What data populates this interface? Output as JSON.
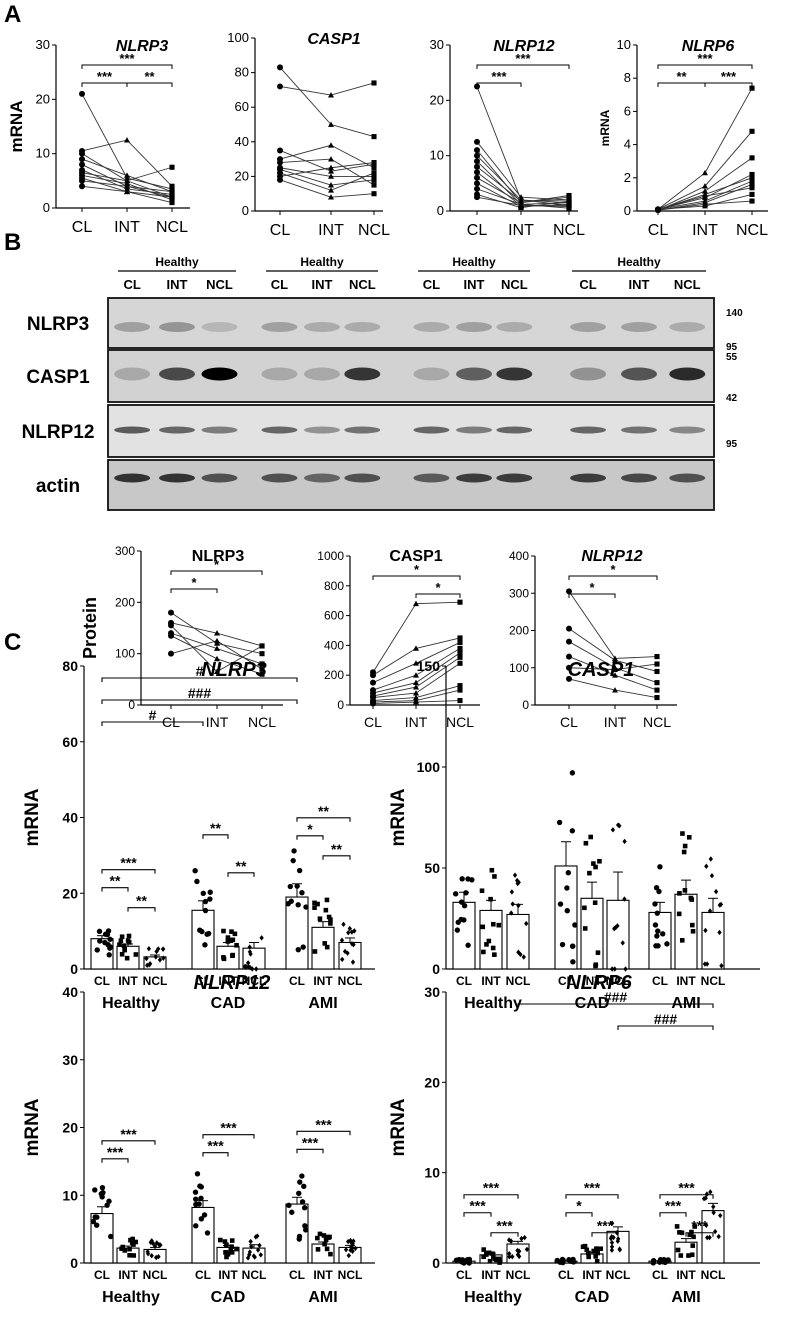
{
  "figure": {
    "panel_labels": [
      "A",
      "B",
      "C"
    ],
    "mRNA_label": "mRNA",
    "protein_label": "Protein",
    "groups": [
      "CL",
      "INT",
      "NCL"
    ],
    "cohorts": [
      "Healthy",
      "CAD",
      "AMI"
    ],
    "blot": {
      "group_header": "Healthy",
      "lanes": [
        "CL",
        "INT",
        "NCL"
      ],
      "rows": [
        "NLRP3",
        "CASP1",
        "NLRP12",
        "actin"
      ],
      "markers": [
        "140",
        "95",
        "55",
        "42",
        "95"
      ]
    }
  },
  "chart_data": [
    {
      "panel": "A",
      "type": "line",
      "title": "NLRP3",
      "italic": true,
      "ylabel": "mRNA",
      "x": [
        "CL",
        "INT",
        "NCL"
      ],
      "ylim": [
        0,
        30
      ],
      "yticks": [
        0,
        10,
        20,
        30
      ],
      "series": [
        {
          "values": [
            21,
            5.5,
            3.5
          ]
        },
        {
          "values": [
            10.5,
            12.5,
            4
          ]
        },
        {
          "values": [
            10,
            5,
            7.5
          ]
        },
        {
          "values": [
            9,
            6,
            3
          ]
        },
        {
          "values": [
            8,
            4,
            2
          ]
        },
        {
          "values": [
            7,
            3.5,
            2.5
          ]
        },
        {
          "values": [
            6.5,
            5,
            2
          ]
        },
        {
          "values": [
            6,
            4.5,
            1.5
          ]
        },
        {
          "values": [
            5.5,
            3,
            1
          ]
        },
        {
          "values": [
            5,
            4,
            3
          ]
        },
        {
          "values": [
            4,
            3,
            2
          ]
        }
      ],
      "sig": [
        {
          "from": "CL",
          "to": "NCL",
          "label": "***"
        },
        {
          "from": "CL",
          "to": "INT",
          "label": "***"
        },
        {
          "from": "INT",
          "to": "NCL",
          "label": "**"
        }
      ]
    },
    {
      "panel": "A",
      "type": "line",
      "title": "CASP1",
      "italic": true,
      "ylabel": "",
      "x": [
        "CL",
        "INT",
        "NCL"
      ],
      "ylim": [
        0,
        100
      ],
      "yticks": [
        0,
        20,
        40,
        60,
        80,
        100
      ],
      "series": [
        {
          "values": [
            83,
            50,
            43
          ]
        },
        {
          "values": [
            72,
            67,
            74
          ]
        },
        {
          "values": [
            35,
            23,
            27
          ]
        },
        {
          "values": [
            30,
            38,
            25
          ]
        },
        {
          "values": [
            28,
            30,
            15
          ]
        },
        {
          "values": [
            25,
            20,
            20
          ]
        },
        {
          "values": [
            22,
            12,
            22
          ]
        },
        {
          "values": [
            20,
            25,
            28
          ]
        },
        {
          "values": [
            18,
            8,
            10
          ]
        },
        {
          "values": [
            24,
            15,
            18
          ]
        }
      ],
      "sig": []
    },
    {
      "panel": "A",
      "type": "line",
      "title": "NLRP12",
      "italic": true,
      "ylabel": "",
      "x": [
        "CL",
        "INT",
        "NCL"
      ],
      "ylim": [
        0,
        30
      ],
      "yticks": [
        0,
        10,
        20,
        30
      ],
      "series": [
        {
          "values": [
            22.5,
            2,
            1.5
          ]
        },
        {
          "values": [
            12.5,
            2.5,
            2
          ]
        },
        {
          "values": [
            11,
            1.5,
            2.8
          ]
        },
        {
          "values": [
            10,
            2,
            1
          ]
        },
        {
          "values": [
            9,
            1.2,
            1.5
          ]
        },
        {
          "values": [
            8,
            1.8,
            2
          ]
        },
        {
          "values": [
            7,
            1,
            0.8
          ]
        },
        {
          "values": [
            6,
            1.5,
            2.5
          ]
        },
        {
          "values": [
            5,
            0.8,
            1.2
          ]
        },
        {
          "values": [
            4,
            1.2,
            0.5
          ]
        },
        {
          "values": [
            3,
            0.6,
            1.8
          ]
        },
        {
          "values": [
            2.5,
            1,
            1
          ]
        }
      ],
      "sig": [
        {
          "from": "CL",
          "to": "NCL",
          "label": "***"
        },
        {
          "from": "CL",
          "to": "INT",
          "label": "***"
        }
      ]
    },
    {
      "panel": "A",
      "type": "line",
      "title": "NLRP6",
      "italic": true,
      "ylabel": "mRNA",
      "x": [
        "CL",
        "INT",
        "NCL"
      ],
      "ylim": [
        0,
        10
      ],
      "yticks": [
        0,
        2,
        4,
        6,
        8,
        10
      ],
      "series": [
        {
          "values": [
            0.1,
            2.3,
            7.4
          ]
        },
        {
          "values": [
            0.1,
            1.5,
            4.8
          ]
        },
        {
          "values": [
            0.05,
            1.2,
            3.2
          ]
        },
        {
          "values": [
            0.1,
            0.8,
            2.2
          ]
        },
        {
          "values": [
            0.08,
            1,
            2
          ]
        },
        {
          "values": [
            0.1,
            0.6,
            1.8
          ]
        },
        {
          "values": [
            0.05,
            0.5,
            1.6
          ]
        },
        {
          "values": [
            0.1,
            0.9,
            1.4
          ]
        },
        {
          "values": [
            0.1,
            0.3,
            1
          ]
        },
        {
          "values": [
            0.05,
            0.4,
            0.6
          ]
        }
      ],
      "sig": [
        {
          "from": "CL",
          "to": "NCL",
          "label": "***"
        },
        {
          "from": "CL",
          "to": "INT",
          "label": "**"
        },
        {
          "from": "INT",
          "to": "NCL",
          "label": "***"
        }
      ]
    },
    {
      "panel": "B",
      "type": "line",
      "title": "NLRP3",
      "italic": false,
      "ylabel": "Protein",
      "x": [
        "CL",
        "INT",
        "NCL"
      ],
      "ylim": [
        0,
        300
      ],
      "yticks": [
        0,
        100,
        200,
        300
      ],
      "series": [
        {
          "values": [
            180,
            120,
            100
          ]
        },
        {
          "values": [
            160,
            140,
            115
          ]
        },
        {
          "values": [
            140,
            110,
            80
          ]
        },
        {
          "values": [
            135,
            90,
            60
          ]
        },
        {
          "values": [
            100,
            125,
            70
          ]
        },
        {
          "values": [
            155,
            65,
            115
          ]
        }
      ],
      "sig": [
        {
          "from": "CL",
          "to": "NCL",
          "label": "*"
        },
        {
          "from": "CL",
          "to": "INT",
          "label": "*"
        }
      ]
    },
    {
      "panel": "B",
      "type": "line",
      "title": "CASP1",
      "italic": false,
      "ylabel": "",
      "x": [
        "CL",
        "INT",
        "NCL"
      ],
      "ylim": [
        0,
        1000
      ],
      "yticks": [
        0,
        200,
        400,
        600,
        800,
        1000
      ],
      "series": [
        {
          "values": [
            220,
            680,
            690
          ]
        },
        {
          "values": [
            200,
            380,
            450
          ]
        },
        {
          "values": [
            150,
            280,
            420
          ]
        },
        {
          "values": [
            100,
            200,
            380
          ]
        },
        {
          "values": [
            80,
            150,
            350
          ]
        },
        {
          "values": [
            60,
            120,
            320
          ]
        },
        {
          "values": [
            50,
            80,
            280
          ]
        },
        {
          "values": [
            30,
            50,
            130
          ]
        },
        {
          "values": [
            20,
            30,
            100
          ]
        },
        {
          "values": [
            10,
            20,
            30
          ]
        }
      ],
      "sig": [
        {
          "from": "CL",
          "to": "NCL",
          "label": "*"
        },
        {
          "from": "INT",
          "to": "NCL",
          "label": "*"
        }
      ]
    },
    {
      "panel": "B",
      "type": "line",
      "title": "NLRP12",
      "italic": true,
      "ylabel": "",
      "x": [
        "CL",
        "INT",
        "NCL"
      ],
      "ylim": [
        0,
        400
      ],
      "yticks": [
        0,
        100,
        200,
        300,
        400
      ],
      "series": [
        {
          "values": [
            305,
            125,
            130
          ]
        },
        {
          "values": [
            205,
            120,
            90
          ]
        },
        {
          "values": [
            170,
            100,
            60
          ]
        },
        {
          "values": [
            130,
            80,
            40
          ]
        },
        {
          "values": [
            100,
            95,
            110
          ]
        },
        {
          "values": [
            70,
            40,
            20
          ]
        }
      ],
      "sig": [
        {
          "from": "CL",
          "to": "NCL",
          "label": "*"
        },
        {
          "from": "CL",
          "to": "INT",
          "label": "*"
        }
      ]
    },
    {
      "panel": "C",
      "type": "bar",
      "title": "NLRP3",
      "italic": true,
      "ylabel": "mRNA",
      "cohorts": [
        "Healthy",
        "CAD",
        "AMI"
      ],
      "groups": [
        "CL",
        "INT",
        "NCL"
      ],
      "ylim": [
        0,
        80
      ],
      "yticks": [
        0,
        20,
        40,
        60,
        80
      ],
      "means": [
        [
          8,
          6,
          3.2
        ],
        [
          15.5,
          6,
          5.5
        ],
        [
          19,
          11,
          7
        ]
      ],
      "sem": [
        [
          0.8,
          0.6,
          0.5
        ],
        [
          2.5,
          1,
          1.5
        ],
        [
          3.5,
          1.5,
          1.2
        ]
      ],
      "sig": [
        {
          "c1": 0,
          "g1": 0,
          "c2": 2,
          "g2": 0,
          "label": "#"
        },
        {
          "c1": 0,
          "g1": 0,
          "c2": 2,
          "g2": 0,
          "label": "###"
        },
        {
          "c1": 0,
          "g1": 0,
          "c2": 1,
          "g2": 0,
          "label": "#"
        },
        {
          "c1": 0,
          "g1": 0,
          "c2": 0,
          "g2": 2,
          "label": "***"
        },
        {
          "c1": 0,
          "g1": 0,
          "c2": 0,
          "g2": 1,
          "label": "**"
        },
        {
          "c1": 0,
          "g1": 1,
          "c2": 0,
          "g2": 2,
          "label": "**"
        },
        {
          "c1": 1,
          "g1": 0,
          "c2": 1,
          "g2": 1,
          "label": "**"
        },
        {
          "c1": 1,
          "g1": 1,
          "c2": 1,
          "g2": 2,
          "label": "**"
        },
        {
          "c1": 2,
          "g1": 0,
          "c2": 2,
          "g2": 2,
          "label": "**"
        },
        {
          "c1": 2,
          "g1": 0,
          "c2": 2,
          "g2": 1,
          "label": "*"
        },
        {
          "c1": 2,
          "g1": 1,
          "c2": 2,
          "g2": 2,
          "label": "**"
        }
      ]
    },
    {
      "panel": "C",
      "type": "bar",
      "title": "CASP1",
      "italic": true,
      "ylabel": "mRNA",
      "cohorts": [
        "Healthy",
        "CAD",
        "AMI"
      ],
      "groups": [
        "CL",
        "INT",
        "NCL"
      ],
      "ylim": [
        0,
        150
      ],
      "yticks": [
        0,
        50,
        100,
        150
      ],
      "means": [
        [
          33,
          29,
          27
        ],
        [
          51,
          35,
          34
        ],
        [
          28,
          37,
          28
        ]
      ],
      "sem": [
        [
          5,
          5,
          5
        ],
        [
          12,
          8,
          14
        ],
        [
          5,
          7,
          7
        ]
      ],
      "sig": []
    },
    {
      "panel": "C",
      "type": "bar",
      "title": "NLRP12",
      "italic": true,
      "ylabel": "mRNA",
      "cohorts": [
        "Healthy",
        "CAD",
        "AMI"
      ],
      "groups": [
        "CL",
        "INT",
        "NCL"
      ],
      "ylim": [
        0,
        40
      ],
      "yticks": [
        0,
        10,
        20,
        30,
        40
      ],
      "means": [
        [
          7.3,
          2.2,
          2
        ],
        [
          8.2,
          2.3,
          2.2
        ],
        [
          8.7,
          2.8,
          2.3
        ]
      ],
      "sem": [
        [
          1,
          0.3,
          0.3
        ],
        [
          1,
          0.3,
          0.5
        ],
        [
          1,
          0.3,
          0.3
        ]
      ],
      "sig": [
        {
          "c1": 0,
          "g1": 0,
          "c2": 0,
          "g2": 2,
          "label": "***"
        },
        {
          "c1": 0,
          "g1": 0,
          "c2": 0,
          "g2": 1,
          "label": "***"
        },
        {
          "c1": 1,
          "g1": 0,
          "c2": 1,
          "g2": 2,
          "label": "***"
        },
        {
          "c1": 1,
          "g1": 0,
          "c2": 1,
          "g2": 1,
          "label": "***"
        },
        {
          "c1": 2,
          "g1": 0,
          "c2": 2,
          "g2": 2,
          "label": "***"
        },
        {
          "c1": 2,
          "g1": 0,
          "c2": 2,
          "g2": 1,
          "label": "***"
        }
      ]
    },
    {
      "panel": "C",
      "type": "bar",
      "title": "NLRP6",
      "italic": true,
      "ylabel": "mRNA",
      "cohorts": [
        "Healthy",
        "CAD",
        "AMI"
      ],
      "groups": [
        "CL",
        "INT",
        "NCL"
      ],
      "ylim": [
        0,
        30
      ],
      "yticks": [
        0,
        10,
        20,
        30
      ],
      "means": [
        [
          0.2,
          0.9,
          2.1
        ],
        [
          0.2,
          1,
          3.5
        ],
        [
          0.2,
          2.3,
          5.8
        ]
      ],
      "sem": [
        [
          0.05,
          0.2,
          0.3
        ],
        [
          0.05,
          0.2,
          0.5
        ],
        [
          0.05,
          0.4,
          0.8
        ]
      ],
      "sig": [
        {
          "c1": 0,
          "g1": 2,
          "c2": 2,
          "g2": 2,
          "label": "###"
        },
        {
          "c1": 1,
          "g1": 2,
          "c2": 2,
          "g2": 2,
          "label": "###"
        },
        {
          "c1": 0,
          "g1": 0,
          "c2": 0,
          "g2": 2,
          "label": "***"
        },
        {
          "c1": 0,
          "g1": 0,
          "c2": 0,
          "g2": 1,
          "label": "***"
        },
        {
          "c1": 0,
          "g1": 1,
          "c2": 0,
          "g2": 2,
          "label": "***"
        },
        {
          "c1": 1,
          "g1": 0,
          "c2": 1,
          "g2": 2,
          "label": "***"
        },
        {
          "c1": 1,
          "g1": 0,
          "c2": 1,
          "g2": 1,
          "label": "*"
        },
        {
          "c1": 1,
          "g1": 1,
          "c2": 1,
          "g2": 2,
          "label": "***"
        },
        {
          "c1": 2,
          "g1": 0,
          "c2": 2,
          "g2": 2,
          "label": "***"
        },
        {
          "c1": 2,
          "g1": 0,
          "c2": 2,
          "g2": 1,
          "label": "***"
        },
        {
          "c1": 2,
          "g1": 1,
          "c2": 2,
          "g2": 2,
          "label": "***"
        }
      ]
    }
  ]
}
